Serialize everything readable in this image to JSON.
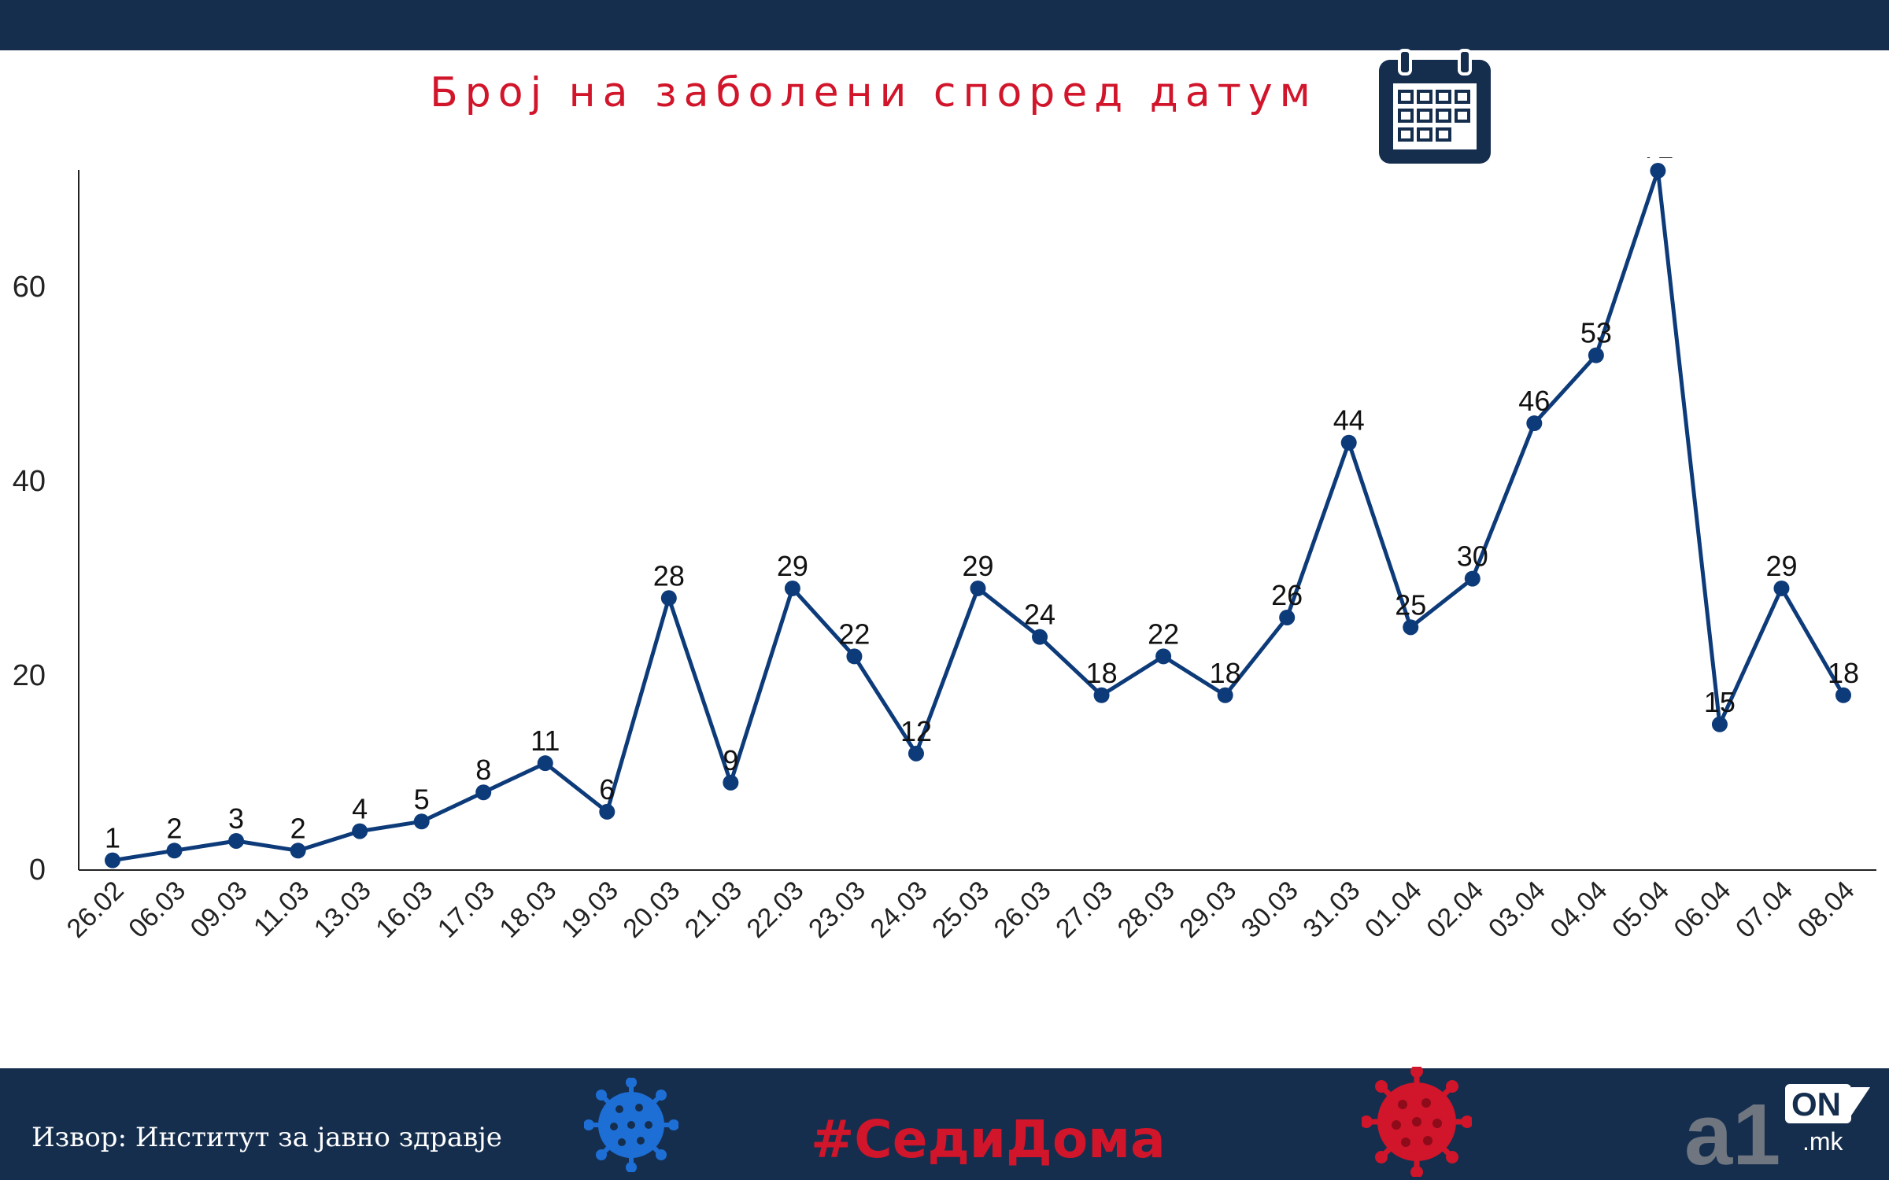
{
  "title": "Број на заболени според датум",
  "source": "Извор: Институт за јавно здравје",
  "hashtag": "#СедиДома",
  "logo": {
    "main": "a1",
    "badge": "ON",
    "domain": ".mk"
  },
  "icons": [
    "calendar-icon",
    "virus-icon-blue",
    "virus-icon-red"
  ],
  "colors": {
    "line": "#0d3b7a",
    "title": "#d1152a",
    "bar": "#152e4e"
  },
  "chart_data": {
    "type": "line",
    "title": "Број на заболени според датум",
    "xlabel": "",
    "ylabel": "",
    "ylim": [
      0,
      75
    ],
    "yticks": [
      0,
      20,
      40,
      60
    ],
    "categories": [
      "26.02",
      "06.03",
      "09.03",
      "11.03",
      "13.03",
      "16.03",
      "17.03",
      "18.03",
      "19.03",
      "20.03",
      "21.03",
      "22.03",
      "23.03",
      "24.03",
      "25.03",
      "26.03",
      "27.03",
      "28.03",
      "29.03",
      "30.03",
      "31.03",
      "01.04",
      "02.04",
      "03.04",
      "04.04",
      "05.04",
      "06.04",
      "07.04",
      "08.04"
    ],
    "values": [
      1,
      2,
      3,
      2,
      4,
      5,
      8,
      11,
      6,
      28,
      9,
      29,
      22,
      12,
      29,
      24,
      18,
      22,
      18,
      26,
      44,
      25,
      30,
      46,
      53,
      72,
      15,
      29,
      18
    ],
    "grid": false,
    "data_labels": true
  }
}
